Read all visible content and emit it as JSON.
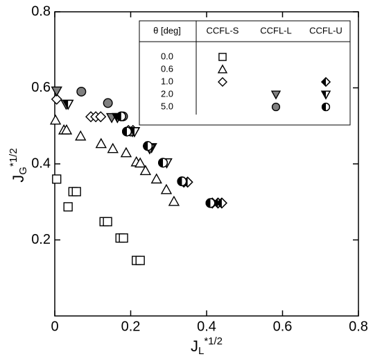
{
  "chart_data": {
    "type": "scatter",
    "x_label": {
      "base": "J",
      "sub": "L",
      "sup": "*1/2"
    },
    "y_label": {
      "base": "J",
      "sub": "G",
      "sup": "*1/2"
    },
    "xlim": [
      0,
      0.8
    ],
    "xticks": [
      0,
      0.2,
      0.4,
      0.6,
      0.8
    ],
    "ylim": [
      0,
      0.8
    ],
    "yticks": [
      0.2,
      0.4,
      0.6,
      0.8
    ],
    "legend": {
      "header": [
        "θ [deg]",
        "CCFL-S",
        "CCFL-L",
        "CCFL-U"
      ],
      "rows": [
        "0.0",
        "0.6",
        "1.0",
        "2.0",
        "5.0"
      ]
    },
    "series": [
      {
        "row": 0,
        "column": 1,
        "marker": "square",
        "fill": "open",
        "color": "#ffffff",
        "x": [
          0.005,
          0.048,
          0.057,
          0.035,
          0.13,
          0.139,
          0.172,
          0.181,
          0.215,
          0.225
        ],
        "values": [
          0.36,
          0.327,
          0.327,
          0.287,
          0.248,
          0.248,
          0.205,
          0.205,
          0.146,
          0.146
        ]
      },
      {
        "row": 1,
        "column": 1,
        "marker": "triangle",
        "fill": "open",
        "color": "#ffffff",
        "x": [
          0.002,
          0.024,
          0.031,
          0.068,
          0.122,
          0.153,
          0.188,
          0.215,
          0.225,
          0.239,
          0.268,
          0.294,
          0.314
        ],
        "values": [
          0.515,
          0.489,
          0.489,
          0.473,
          0.453,
          0.44,
          0.429,
          0.405,
          0.402,
          0.382,
          0.36,
          0.332,
          0.301
        ]
      },
      {
        "row": 2,
        "column": 1,
        "marker": "diamond",
        "fill": "open",
        "color": "#ffffff",
        "x": [
          0.005,
          0.095,
          0.108,
          0.121,
          0.194,
          0.206
        ],
        "values": [
          0.57,
          0.524,
          0.524,
          0.524,
          0.488,
          0.488
        ]
      },
      {
        "row": 3,
        "column": 2,
        "marker": "invtriangle",
        "fill": "gray",
        "color": "#808080",
        "x": [
          0.005,
          0.03,
          0.15,
          0.205,
          0.255
        ],
        "values": [
          0.592,
          0.557,
          0.522,
          0.485,
          0.443
        ]
      },
      {
        "row": 4,
        "column": 2,
        "marker": "circle",
        "fill": "gray",
        "color": "#808080",
        "x": [
          0.07,
          0.14,
          0.18,
          0.2
        ],
        "values": [
          0.59,
          0.56,
          0.525,
          0.485
        ]
      },
      {
        "row": 2,
        "column": 3,
        "marker": "diamond",
        "fill": "half",
        "color": "#000000",
        "x": [
          0.415,
          0.43,
          0.44,
          0.34,
          0.35
        ],
        "values": [
          0.297,
          0.297,
          0.297,
          0.352,
          0.352
        ]
      },
      {
        "row": 3,
        "column": 3,
        "marker": "invtriangle",
        "fill": "half",
        "color": "#000000",
        "x": [
          0.035,
          0.165,
          0.21,
          0.25,
          0.295
        ],
        "values": [
          0.557,
          0.522,
          0.485,
          0.44,
          0.403
        ]
      },
      {
        "row": 4,
        "column": 3,
        "marker": "circle",
        "fill": "half",
        "color": "#000000",
        "x": [
          0.175,
          0.19,
          0.245,
          0.285,
          0.335,
          0.41
        ],
        "values": [
          0.525,
          0.485,
          0.447,
          0.403,
          0.354,
          0.297
        ]
      }
    ]
  }
}
